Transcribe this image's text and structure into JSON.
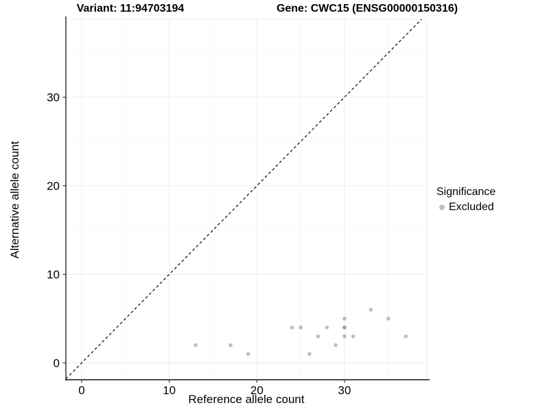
{
  "titles": {
    "variant": "Variant: 11:94703194",
    "gene": "Gene: CWC15 (ENSG00000150316)"
  },
  "axes": {
    "x_label": "Reference allele count",
    "y_label": "Alternative allele count"
  },
  "legend": {
    "title": "Significance",
    "items": [
      {
        "label": "Excluded",
        "color": "#bebebe"
      }
    ]
  },
  "colors": {
    "background": "#ffffff",
    "axis_line": "#333333",
    "tick_label": "#000000",
    "grid_major": "#ececec",
    "grid_minor": "#f6f6f6",
    "point_fill": "rgba(128,128,128,0.5)",
    "identity_line": "#000000"
  },
  "chart_data": {
    "type": "scatter",
    "title": "Variant: 11:94703194 — Gene: CWC15 (ENSG00000150316)",
    "xlabel": "Reference allele count",
    "ylabel": "Alternative allele count",
    "xlim": [
      -1.8,
      39.4
    ],
    "ylim": [
      -1.9,
      38.8
    ],
    "x_ticks": [
      0,
      10,
      20,
      30
    ],
    "y_ticks": [
      0,
      10,
      20,
      30
    ],
    "x_minor": [
      5,
      15,
      25,
      35
    ],
    "y_minor": [
      5,
      15,
      25,
      35
    ],
    "grid": true,
    "legend_position": "right",
    "point_radius": 2.8,
    "identity_line": {
      "equation": "y = x",
      "style": "dashed"
    },
    "series": [
      {
        "name": "Excluded",
        "points": [
          [
            13,
            2
          ],
          [
            17,
            2
          ],
          [
            19,
            1
          ],
          [
            24,
            4
          ],
          [
            25,
            4
          ],
          [
            26,
            1
          ],
          [
            27,
            3
          ],
          [
            28,
            4
          ],
          [
            29,
            2
          ],
          [
            30,
            3
          ],
          [
            30,
            4
          ],
          [
            30,
            4
          ],
          [
            30,
            5
          ],
          [
            31,
            3
          ],
          [
            33,
            6
          ],
          [
            35,
            5
          ],
          [
            37,
            3
          ]
        ]
      }
    ]
  }
}
